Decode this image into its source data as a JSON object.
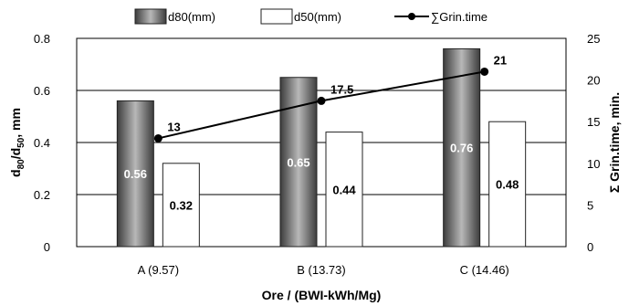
{
  "chart_data": {
    "type": "bar",
    "categories": [
      "A (9.57)",
      "B (13.73)",
      "C (14.46)"
    ],
    "series": [
      {
        "name": "d80(mm)",
        "type": "bar",
        "axis": "left",
        "values": [
          0.56,
          0.65,
          0.76
        ],
        "labels": [
          "0.56",
          "0.65",
          "0.76"
        ],
        "color": "#7a7a7a"
      },
      {
        "name": "d50(mm)",
        "type": "bar",
        "axis": "left",
        "values": [
          0.32,
          0.44,
          0.48
        ],
        "labels": [
          "0.32",
          "0.44",
          "0.48"
        ],
        "color": "#ffffff"
      },
      {
        "name": "∑Grin.time",
        "type": "line",
        "axis": "right",
        "values": [
          13,
          17.5,
          21
        ],
        "labels": [
          "13",
          "17.5",
          "21"
        ],
        "color": "#000000"
      }
    ],
    "xlabel": "Ore / (BWI-kWh/Mg)",
    "ylabel": {
      "main": "d",
      "sub1": "80",
      "mid": "/d",
      "sub2": "50",
      "tail": ", mm"
    },
    "y2label": "Σ Grin.time, min.",
    "ylim": [
      0,
      0.8
    ],
    "y2lim": [
      0,
      25
    ],
    "yticks": [
      "0",
      "0.2",
      "0.4",
      "0.6",
      "0.8"
    ],
    "y2ticks": [
      "0",
      "5",
      "10",
      "15",
      "20",
      "25"
    ],
    "grid": true,
    "legend": "top"
  }
}
